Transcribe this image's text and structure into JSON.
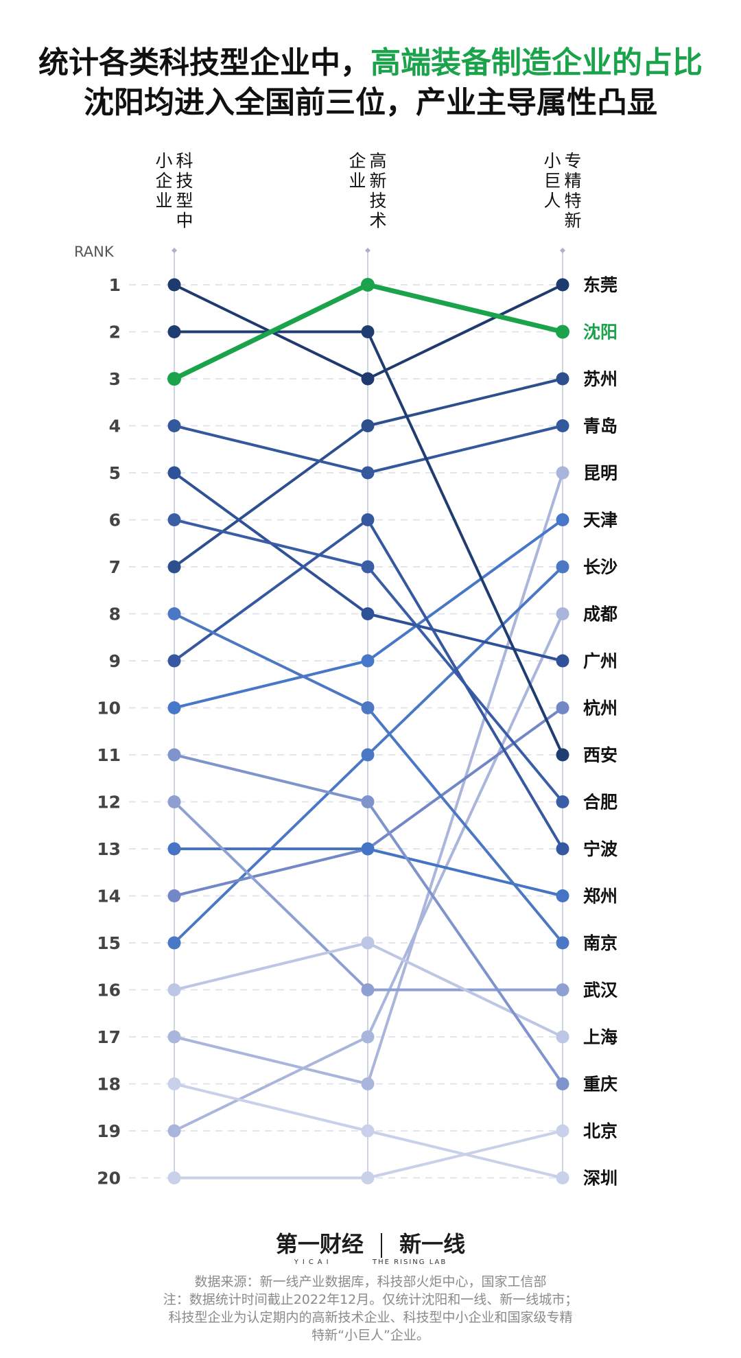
{
  "title": {
    "line1_part1": "统计各类科技型企业中，",
    "line1_highlight": "高端装备制造企业的占比",
    "line2": "沈阳均进入全国前三位，产业主导属性凸显"
  },
  "chart_data": {
    "type": "line",
    "rank_label": "RANK",
    "ranks": [
      1,
      2,
      3,
      4,
      5,
      6,
      7,
      8,
      9,
      10,
      11,
      12,
      13,
      14,
      15,
      16,
      17,
      18,
      19,
      20
    ],
    "columns": [
      {
        "key": "small",
        "label": "科技型中小企业"
      },
      {
        "key": "hightech",
        "label": "高新技术企业"
      },
      {
        "key": "giant",
        "label": "专精特新小巨人"
      }
    ],
    "highlight_city": "沈阳",
    "highlight_color": "#1aa34a",
    "ylim": [
      1,
      20
    ],
    "series": [
      {
        "name": "东莞",
        "ranks": [
          1,
          3,
          1
        ],
        "color": "#1f3a6e"
      },
      {
        "name": "沈阳",
        "ranks": [
          3,
          1,
          2
        ],
        "color": "#1aa34a"
      },
      {
        "name": "苏州",
        "ranks": [
          7,
          4,
          3
        ],
        "color": "#2d4f8e"
      },
      {
        "name": "青岛",
        "ranks": [
          4,
          5,
          4
        ],
        "color": "#34589c"
      },
      {
        "name": "昆明",
        "ranks": [
          17,
          18,
          5
        ],
        "color": "#a9b5da"
      },
      {
        "name": "天津",
        "ranks": [
          10,
          9,
          6
        ],
        "color": "#4677c8"
      },
      {
        "name": "长沙",
        "ranks": [
          15,
          11,
          7
        ],
        "color": "#4a78c4"
      },
      {
        "name": "成都",
        "ranks": [
          19,
          17,
          8
        ],
        "color": "#a9b5da"
      },
      {
        "name": "广州",
        "ranks": [
          5,
          8,
          9
        ],
        "color": "#2f5197"
      },
      {
        "name": "杭州",
        "ranks": [
          14,
          13,
          10
        ],
        "color": "#7387c6"
      },
      {
        "name": "西安",
        "ranks": [
          2,
          2,
          11
        ],
        "color": "#203d72"
      },
      {
        "name": "合肥",
        "ranks": [
          6,
          7,
          12
        ],
        "color": "#3a5ea6"
      },
      {
        "name": "宁波",
        "ranks": [
          9,
          6,
          13
        ],
        "color": "#3558a0"
      },
      {
        "name": "郑州",
        "ranks": [
          13,
          13,
          14
        ],
        "color": "#4574c4"
      },
      {
        "name": "南京",
        "ranks": [
          8,
          10,
          15
        ],
        "color": "#4c77c2"
      },
      {
        "name": "武汉",
        "ranks": [
          12,
          16,
          16
        ],
        "color": "#8e9fd1"
      },
      {
        "name": "上海",
        "ranks": [
          16,
          15,
          17
        ],
        "color": "#bcc6e5"
      },
      {
        "name": "重庆",
        "ranks": [
          11,
          12,
          18
        ],
        "color": "#7f93cc"
      },
      {
        "name": "北京",
        "ranks": [
          20,
          20,
          19
        ],
        "color": "#c8d0ea"
      },
      {
        "name": "深圳",
        "ranks": [
          18,
          19,
          20
        ],
        "color": "#c8d0ea"
      }
    ]
  },
  "logo": {
    "brand1": "第一财经",
    "brand1_sub": "YICAI",
    "brand2": "新一线",
    "brand2_sub": "THE RISING LAB"
  },
  "footer": {
    "source": "数据来源：新一线产业数据库，科技部火炬中心，国家工信部",
    "note1": "注：数据统计时间截止2022年12月。仅统计沈阳和一线、新一线城市；",
    "note2": "科技型企业为认定期内的高新技术企业、科技型中小企业和国家级专精",
    "note3": "特新“小巨人”企业。"
  }
}
